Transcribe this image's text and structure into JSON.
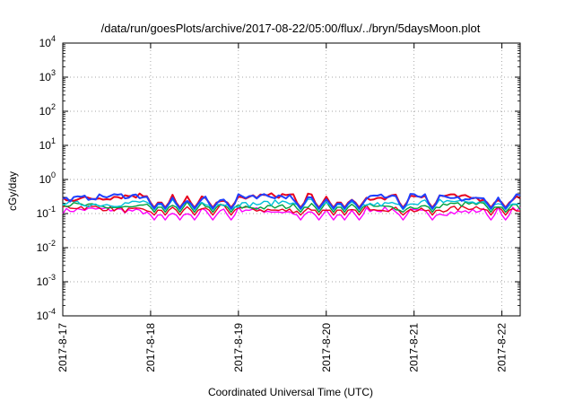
{
  "chart_data": {
    "type": "line",
    "title": "/data/run/goesPlots/archive/2017-08-22/05:00/flux/../bryn/5daysMoon.plot",
    "xlabel": "Coordinated Universal Time (UTC)",
    "ylabel": "cGy/day",
    "y_scale": "log",
    "ylim": [
      0.0001,
      10000
    ],
    "y_ticks": [
      {
        "base": "10",
        "exp": "-4",
        "value": 0.0001
      },
      {
        "base": "10",
        "exp": "-3",
        "value": 0.001
      },
      {
        "base": "10",
        "exp": "-2",
        "value": 0.01
      },
      {
        "base": "10",
        "exp": "-1",
        "value": 0.1
      },
      {
        "base": "10",
        "exp": "0",
        "value": 1
      },
      {
        "base": "10",
        "exp": "1",
        "value": 10
      },
      {
        "base": "10",
        "exp": "2",
        "value": 100
      },
      {
        "base": "10",
        "exp": "3",
        "value": 1000
      },
      {
        "base": "10",
        "exp": "4",
        "value": 10000
      }
    ],
    "x_ticks": [
      "2017-8-17",
      "2017-8-18",
      "2017-8-19",
      "2017-8-20",
      "2017-8-21",
      "2017-8-22"
    ],
    "xlim": [
      "2017-08-17 00:00",
      "2017-08-22 05:00"
    ],
    "grid": true,
    "dip_times": [
      "2017-08-18 01:00",
      "2017-08-18 04:00",
      "2017-08-18 08:00",
      "2017-08-18 12:00",
      "2017-08-18 17:00",
      "2017-08-18 22:00",
      "2017-08-19 17:00",
      "2017-08-19 22:00",
      "2017-08-20 02:00",
      "2017-08-20 05:00",
      "2017-08-20 09:00",
      "2017-08-20 21:00",
      "2017-08-21 05:00",
      "2017-08-21 21:00",
      "2017-08-22 01:00"
    ],
    "series": [
      {
        "color": "#ff00ff",
        "level": 0.12,
        "dip_level": 0.065
      },
      {
        "color": "#e8001c",
        "level": 0.14,
        "dip_level": 0.09
      },
      {
        "color": "#00a03c",
        "level": 0.17,
        "dip_level": 0.11
      },
      {
        "color": "#00c0d8",
        "level": 0.21,
        "dip_level": 0.13
      },
      {
        "color": "#e8001c",
        "level": 0.31,
        "dip_level": 0.15
      },
      {
        "color": "#2040ff",
        "level": 0.3,
        "dip_level": 0.14
      }
    ]
  }
}
